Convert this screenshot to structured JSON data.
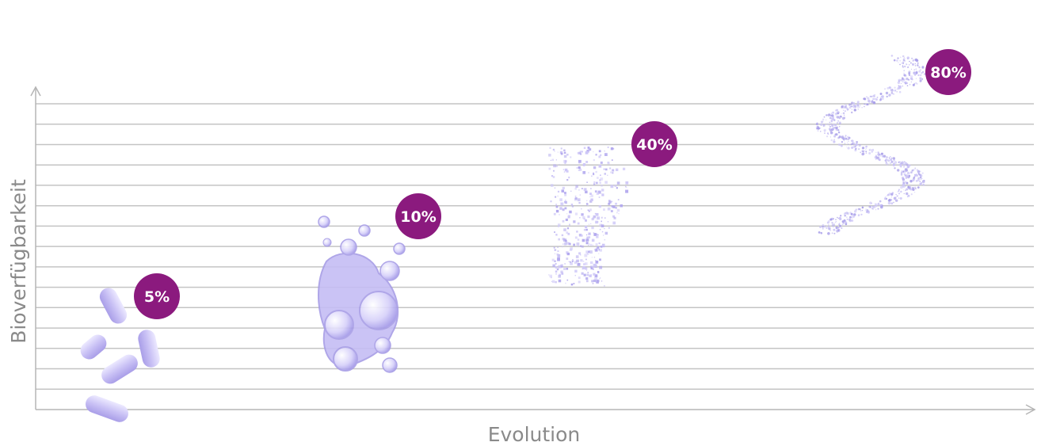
{
  "chart_data": {
    "type": "scatter",
    "xlabel": "Evolution",
    "ylabel": "Bioverfügbarkeit",
    "grid": true,
    "gridline_count": 15,
    "accent_color": "#8b1a7e",
    "illustration_color": "#b7aef0",
    "points": [
      {
        "label": "5%",
        "value": 5,
        "icon": "capsules-icon"
      },
      {
        "label": "10%",
        "value": 10,
        "icon": "liquid-droplets-icon"
      },
      {
        "label": "40%",
        "value": 40,
        "icon": "powder-particles-icon"
      },
      {
        "label": "80%",
        "value": 80,
        "icon": "fine-powder-helix-icon"
      }
    ]
  }
}
